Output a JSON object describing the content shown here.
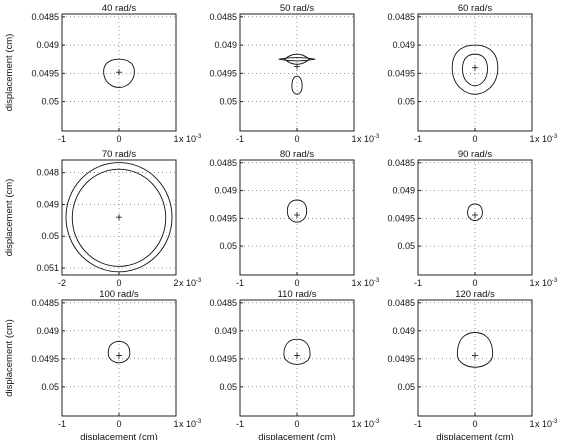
{
  "chart_data": [
    {
      "type": "line",
      "title": "40 rad/s",
      "xlabel": "",
      "ylabel": "displacement (cm)",
      "xlim": [
        -1,
        1
      ],
      "ylim": [
        0.04845,
        0.05052
      ],
      "x_ticks": [
        -1,
        0,
        1
      ],
      "x_tick_labels": [
        "-1",
        "0",
        "1"
      ],
      "x_exponent_label": "x 10",
      "y_ticks": [
        0.0485,
        0.049,
        0.0495,
        0.05
      ],
      "y_tick_labels": [
        "0.0485",
        "0.049",
        "0.0495",
        "0.05"
      ],
      "grid": true,
      "y_reversed": true,
      "center": [
        0,
        0.04948
      ],
      "orbits": [
        {
          "shape": "drop",
          "x0": 0,
          "y0": 0.04947,
          "rx": 0.27,
          "ry_top": 0.00022,
          "ry_bottom": 0.00028
        }
      ]
    },
    {
      "type": "line",
      "title": "50 rad/s",
      "xlabel": "",
      "ylabel": "",
      "xlim": [
        -1,
        1
      ],
      "ylim": [
        0.04845,
        0.05052
      ],
      "x_ticks": [
        -1,
        0,
        1
      ],
      "x_tick_labels": [
        "-1",
        "0",
        "1"
      ],
      "x_exponent_label": "x 10",
      "y_ticks": [
        0.0485,
        0.049,
        0.0495,
        0.05
      ],
      "y_tick_labels": [
        "0.0485",
        "0.049",
        "0.0495",
        "0.05"
      ],
      "grid": true,
      "y_reversed": true,
      "center": [
        0,
        0.04938
      ],
      "orbits": [
        {
          "shape": "lens",
          "x0": 0,
          "y0": 0.04925,
          "rx": 0.32,
          "ry": 3e-05
        },
        {
          "shape": "lens",
          "x0": 0,
          "y0": 0.04925,
          "rx": 0.22,
          "ry": 9e-05
        },
        {
          "shape": "drop",
          "x0": 0,
          "y0": 0.04973,
          "rx": 0.09,
          "ry_top": 0.00018,
          "ry_bottom": 0.00014
        }
      ]
    },
    {
      "type": "line",
      "title": "60 rad/s",
      "xlabel": "",
      "ylabel": "",
      "xlim": [
        -1,
        1
      ],
      "ylim": [
        0.04845,
        0.05052
      ],
      "x_ticks": [
        -1,
        0,
        1
      ],
      "x_tick_labels": [
        "-1",
        "0",
        "1"
      ],
      "x_exponent_label": "x 10",
      "y_ticks": [
        0.0485,
        0.049,
        0.0495,
        0.05
      ],
      "y_tick_labels": [
        "0.0485",
        "0.049",
        "0.0495",
        "0.05"
      ],
      "grid": true,
      "y_reversed": true,
      "center": [
        0,
        0.0494
      ],
      "orbits": [
        {
          "shape": "drop",
          "x0": 0,
          "y0": 0.0494,
          "rx": 0.4,
          "ry_top": 0.0004,
          "ry_bottom": 0.00047
        },
        {
          "shape": "drop",
          "x0": 0,
          "y0": 0.04942,
          "rx": 0.22,
          "ry_top": 0.00026,
          "ry_bottom": 0.0003
        }
      ]
    },
    {
      "type": "line",
      "title": "70 rad/s",
      "xlabel": "",
      "ylabel": "displacement (cm)",
      "xlim": [
        -2,
        2
      ],
      "ylim": [
        0.0476,
        0.05122
      ],
      "x_ticks": [
        -2,
        0,
        2
      ],
      "x_tick_labels": [
        "-2",
        "0",
        "2"
      ],
      "x_exponent_label": "x 10",
      "y_ticks": [
        0.048,
        0.049,
        0.05,
        0.051
      ],
      "y_tick_labels": [
        "0.048",
        "0.049",
        "0.05",
        "0.051"
      ],
      "grid": true,
      "y_reversed": true,
      "center": [
        0,
        0.0494
      ],
      "orbits": [
        {
          "shape": "circle",
          "x0": 0,
          "y0": 0.0494,
          "rx": 1.86,
          "ry": 0.00172
        },
        {
          "shape": "circle",
          "x0": 0,
          "y0": 0.04942,
          "rx": 1.64,
          "ry": 0.00153
        }
      ]
    },
    {
      "type": "line",
      "title": "80 rad/s",
      "xlabel": "",
      "ylabel": "",
      "xlim": [
        -1,
        1
      ],
      "ylim": [
        0.04845,
        0.05052
      ],
      "x_ticks": [
        -1,
        0,
        1
      ],
      "x_tick_labels": [
        "-1",
        "0",
        "1"
      ],
      "x_exponent_label": "x 10",
      "y_ticks": [
        0.0485,
        0.049,
        0.0495,
        0.05
      ],
      "y_tick_labels": [
        "0.0485",
        "0.049",
        "0.0495",
        "0.05"
      ],
      "grid": true,
      "y_reversed": true,
      "center": [
        0,
        0.04944
      ],
      "orbits": [
        {
          "shape": "drop",
          "x0": 0,
          "y0": 0.04937,
          "rx": 0.17,
          "ry_top": 0.0002,
          "ry_bottom": 0.0002
        }
      ]
    },
    {
      "type": "line",
      "title": "90 rad/s",
      "xlabel": "",
      "ylabel": "",
      "xlim": [
        -1,
        1
      ],
      "ylim": [
        0.04845,
        0.05052
      ],
      "x_ticks": [
        -1,
        0,
        1
      ],
      "x_tick_labels": [
        "-1",
        "0",
        "1"
      ],
      "x_exponent_label": "x 10",
      "y_ticks": [
        0.0485,
        0.049,
        0.0495,
        0.05
      ],
      "y_tick_labels": [
        "0.0485",
        "0.049",
        "0.0495",
        "0.05"
      ],
      "grid": true,
      "y_reversed": true,
      "center": [
        0,
        0.04944
      ],
      "orbits": [
        {
          "shape": "drop",
          "x0": 0,
          "y0": 0.0494,
          "rx": 0.13,
          "ry_top": 0.00016,
          "ry_bottom": 0.00014
        }
      ]
    },
    {
      "type": "line",
      "title": "100 rad/s",
      "xlabel": "displacement (cm)",
      "ylabel": "displacement (cm)",
      "xlim": [
        -1,
        1
      ],
      "ylim": [
        0.04845,
        0.05052
      ],
      "x_ticks": [
        -1,
        0,
        1
      ],
      "x_tick_labels": [
        "-1",
        "0",
        "1"
      ],
      "x_exponent_label": "x 10",
      "y_ticks": [
        0.0485,
        0.049,
        0.0495,
        0.05
      ],
      "y_tick_labels": [
        "0.0485",
        "0.049",
        "0.0495",
        "0.05"
      ],
      "grid": true,
      "y_reversed": true,
      "center": [
        0,
        0.04944
      ],
      "orbits": [
        {
          "shape": "drop",
          "x0": 0,
          "y0": 0.0494,
          "rx": 0.19,
          "ry_top": 0.00021,
          "ry_bottom": 0.00017
        }
      ]
    },
    {
      "type": "line",
      "title": "110 rad/s",
      "xlabel": "displacement (cm)",
      "ylabel": "",
      "xlim": [
        -1,
        1
      ],
      "ylim": [
        0.04845,
        0.05052
      ],
      "x_ticks": [
        -1,
        0,
        1
      ],
      "x_tick_labels": [
        "-1",
        "0",
        "1"
      ],
      "x_exponent_label": "x 10",
      "y_ticks": [
        0.0485,
        0.049,
        0.0495,
        0.05
      ],
      "y_tick_labels": [
        "0.0485",
        "0.049",
        "0.0495",
        "0.05"
      ],
      "grid": true,
      "y_reversed": true,
      "center": [
        0,
        0.04944
      ],
      "orbits": [
        {
          "shape": "drop",
          "x0": 0,
          "y0": 0.04942,
          "rx": 0.23,
          "ry_top": 0.00027,
          "ry_bottom": 0.00018
        }
      ]
    },
    {
      "type": "line",
      "title": "120 rad/s",
      "xlabel": "displacement (cm)",
      "ylabel": "",
      "xlim": [
        -1,
        1
      ],
      "ylim": [
        0.04845,
        0.05052
      ],
      "x_ticks": [
        -1,
        0,
        1
      ],
      "x_tick_labels": [
        "-1",
        "0",
        "1"
      ],
      "x_exponent_label": "x 10",
      "y_ticks": [
        0.0485,
        0.049,
        0.0495,
        0.05
      ],
      "y_tick_labels": [
        "0.0485",
        "0.049",
        "0.0495",
        "0.05"
      ],
      "grid": true,
      "y_reversed": true,
      "center": [
        0,
        0.04944
      ],
      "orbits": [
        {
          "shape": "drop",
          "x0": 0,
          "y0": 0.04942,
          "rx": 0.31,
          "ry_top": 0.00039,
          "ry_bottom": 0.00023
        }
      ]
    }
  ]
}
